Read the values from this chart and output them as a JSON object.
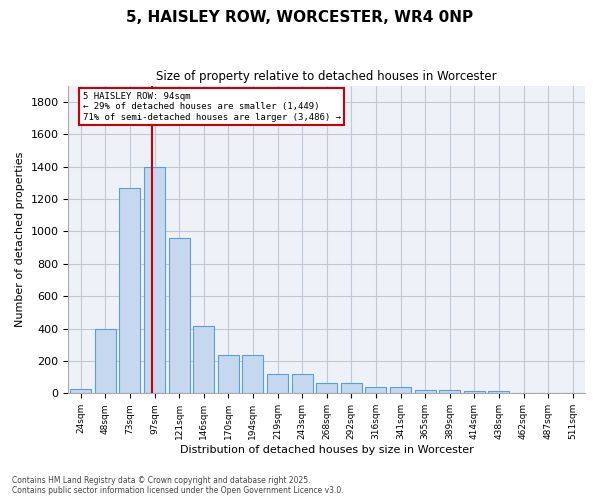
{
  "title": "5, HAISLEY ROW, WORCESTER, WR4 0NP",
  "subtitle": "Size of property relative to detached houses in Worcester",
  "xlabel": "Distribution of detached houses by size in Worcester",
  "ylabel": "Number of detached properties",
  "categories": [
    "24sqm",
    "48sqm",
    "73sqm",
    "97sqm",
    "121sqm",
    "146sqm",
    "170sqm",
    "194sqm",
    "219sqm",
    "243sqm",
    "268sqm",
    "292sqm",
    "316sqm",
    "341sqm",
    "365sqm",
    "389sqm",
    "414sqm",
    "438sqm",
    "462sqm",
    "487sqm",
    "511sqm"
  ],
  "values": [
    25,
    400,
    1265,
    1400,
    960,
    415,
    235,
    235,
    120,
    120,
    65,
    65,
    42,
    42,
    18,
    18,
    12,
    12,
    0,
    0,
    0
  ],
  "bar_color": "#c5d8f0",
  "bar_edge_color": "#5a9fd4",
  "annotation_box_text": "5 HAISLEY ROW: 94sqm\n← 29% of detached houses are smaller (1,449)\n71% of semi-detached houses are larger (3,486) →",
  "annotation_box_color": "#cc0000",
  "vline_color": "#cc0000",
  "vline_pos": 2.88,
  "ylim": [
    0,
    1900
  ],
  "yticks": [
    0,
    200,
    400,
    600,
    800,
    1000,
    1200,
    1400,
    1600,
    1800
  ],
  "grid_color": "#c0c8d8",
  "bg_color": "#eef2f8",
  "footer_line1": "Contains HM Land Registry data © Crown copyright and database right 2025.",
  "footer_line2": "Contains public sector information licensed under the Open Government Licence v3.0."
}
